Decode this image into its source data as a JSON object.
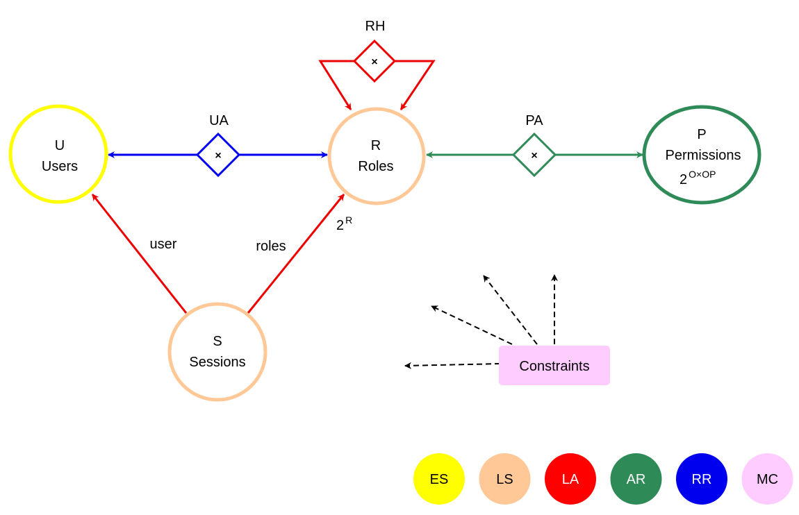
{
  "nodes": {
    "users": {
      "line1": "U",
      "line2": "Users",
      "color": "#ffff00"
    },
    "roles": {
      "line1": "R",
      "line2": "Roles",
      "color": "#ffc896"
    },
    "permissions": {
      "line1": "P",
      "line2": "Permissions",
      "base": "2",
      "sup": "O×OP",
      "color": "#2e8b57"
    },
    "sessions": {
      "line1": "S",
      "line2": "Sessions",
      "color": "#ffc896"
    },
    "constraints": {
      "label": "Constraints",
      "color": "#ffccff"
    }
  },
  "relations": {
    "ua": {
      "label": "UA",
      "symbol": "×",
      "color": "#0000ee"
    },
    "pa": {
      "label": "PA",
      "symbol": "×",
      "color": "#2e8b57"
    },
    "rh": {
      "label": "RH",
      "symbol": "×",
      "color": "#ee0000"
    }
  },
  "edges": {
    "user_label": "user",
    "roles_label": "roles",
    "roles_power_base": "2",
    "roles_power_sup": "R",
    "session_color": "#ee0000"
  },
  "legend": [
    {
      "label": "ES",
      "color": "#ffff00",
      "text_color": "#000000"
    },
    {
      "label": "LS",
      "color": "#ffc896",
      "text_color": "#000000"
    },
    {
      "label": "LA",
      "color": "#ff0000",
      "text_color": "#ffffff"
    },
    {
      "label": "AR",
      "color": "#2e8b57",
      "text_color": "#ffffff"
    },
    {
      "label": "RR",
      "color": "#0000ee",
      "text_color": "#ffffff"
    },
    {
      "label": "MC",
      "color": "#ffccff",
      "text_color": "#000000"
    }
  ]
}
